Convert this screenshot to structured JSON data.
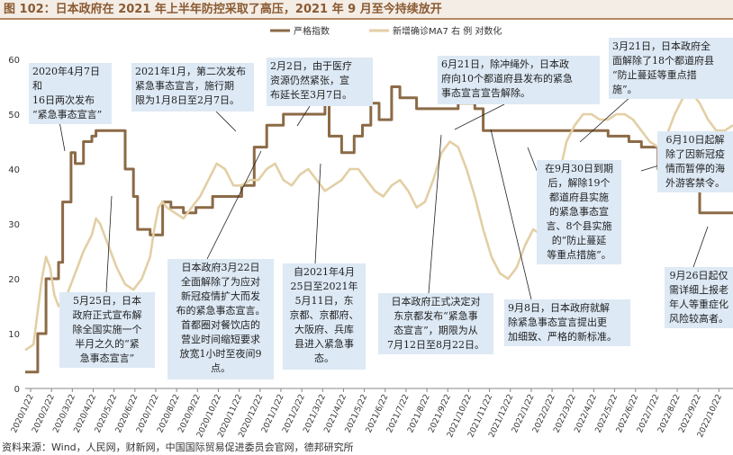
{
  "title": "图 102：日本政府在 2021 年上半年防控采取了高压，2021 年 9 月至今持续放开",
  "source": "资料来源：Wind，人民网，财新网，中国国际贸易促进委员会官网，德邦研究所",
  "colors": {
    "stringency": "#8b6a46",
    "ma7": "#e3cfa5",
    "annotation_bg": "#dde9f5",
    "title_text": "#8a5a32",
    "grid": "#cccccc"
  },
  "chart_data": {
    "type": "line",
    "legend_position": "top-right",
    "grid": false,
    "y_left_ticks": [
      "0",
      "10",
      "20",
      "30",
      "40",
      "50",
      "60"
    ],
    "ylim_left": [
      0,
      60
    ],
    "x_tick_labels": [
      "2020/1/22",
      "2020/2/22",
      "2020/3/22",
      "2020/4/22",
      "2020/5/22",
      "2020/6/22",
      "2020/7/22",
      "2020/8/22",
      "2020/9/22",
      "2020/10/22",
      "2020/11/22",
      "2020/12/22",
      "2021/1/22",
      "2021/2/22",
      "2021/3/22",
      "2021/4/22",
      "2021/5/22",
      "2021/6/22",
      "2021/7/22",
      "2021/8/22",
      "2021/9/22",
      "2021/10/22",
      "2021/11/22",
      "2021/12/22",
      "2022/1/22",
      "2022/2/22",
      "2022/3/22",
      "2022/4/22",
      "2022/5/22",
      "2022/6/22",
      "2022/7/22",
      "2022/8/22",
      "2022/9/22",
      "2022/10/22"
    ],
    "series": [
      {
        "name": "严格指数",
        "axis": "left",
        "values": [
          [
            0,
            3
          ],
          [
            3,
            3
          ],
          [
            3,
            10
          ],
          [
            5,
            10
          ],
          [
            5,
            20
          ],
          [
            8,
            20
          ],
          [
            8,
            23
          ],
          [
            9,
            23
          ],
          [
            9,
            34
          ],
          [
            11,
            34
          ],
          [
            11,
            43
          ],
          [
            12,
            43
          ],
          [
            12,
            41
          ],
          [
            14,
            41
          ],
          [
            14,
            45
          ],
          [
            16,
            45
          ],
          [
            16,
            46
          ],
          [
            17,
            46
          ],
          [
            17,
            47
          ],
          [
            24,
            47
          ],
          [
            24,
            40
          ],
          [
            26,
            40
          ],
          [
            26,
            35
          ],
          [
            27,
            35
          ],
          [
            27,
            29
          ],
          [
            30,
            29
          ],
          [
            30,
            28
          ],
          [
            33,
            28
          ],
          [
            33,
            34
          ],
          [
            35,
            34
          ],
          [
            35,
            33
          ],
          [
            38,
            33
          ],
          [
            38,
            32
          ],
          [
            41,
            32
          ],
          [
            41,
            33
          ],
          [
            45,
            33
          ],
          [
            45,
            35
          ],
          [
            52,
            35
          ],
          [
            52,
            37
          ],
          [
            55,
            37
          ],
          [
            55,
            44
          ],
          [
            58,
            44
          ],
          [
            58,
            48
          ],
          [
            62,
            48
          ],
          [
            62,
            50
          ],
          [
            72,
            50
          ],
          [
            72,
            52
          ],
          [
            73,
            52
          ],
          [
            73,
            46
          ],
          [
            76,
            46
          ],
          [
            76,
            43
          ],
          [
            79,
            43
          ],
          [
            79,
            46
          ],
          [
            81,
            46
          ],
          [
            81,
            48
          ],
          [
            83,
            48
          ],
          [
            83,
            52
          ],
          [
            85,
            52
          ],
          [
            85,
            49
          ],
          [
            88,
            49
          ],
          [
            88,
            55
          ],
          [
            90,
            55
          ],
          [
            90,
            53
          ],
          [
            94,
            53
          ],
          [
            94,
            51
          ],
          [
            104,
            51
          ],
          [
            104,
            52
          ],
          [
            108,
            52
          ],
          [
            108,
            51
          ],
          [
            110,
            51
          ],
          [
            110,
            47
          ],
          [
            140,
            47
          ],
          [
            140,
            46
          ],
          [
            145,
            46
          ],
          [
            145,
            45
          ],
          [
            148,
            45
          ],
          [
            148,
            44
          ],
          [
            152,
            44
          ],
          [
            152,
            40
          ],
          [
            155,
            40
          ],
          [
            155,
            38
          ],
          [
            158,
            38
          ],
          [
            158,
            37
          ],
          [
            162,
            37
          ],
          [
            162,
            32
          ],
          [
            170,
            32
          ]
        ]
      },
      {
        "name": "新增确诊MA7 右 例 对数化",
        "axis": "right",
        "values": [
          [
            0,
            7
          ],
          [
            2,
            8
          ],
          [
            4,
            20
          ],
          [
            5,
            24
          ],
          [
            6,
            22
          ],
          [
            7,
            17
          ],
          [
            8,
            15
          ],
          [
            10,
            17
          ],
          [
            12,
            21
          ],
          [
            14,
            25
          ],
          [
            16,
            28
          ],
          [
            17,
            31
          ],
          [
            18,
            30
          ],
          [
            20,
            26
          ],
          [
            22,
            22
          ],
          [
            24,
            19
          ],
          [
            26,
            18
          ],
          [
            28,
            20
          ],
          [
            30,
            24
          ],
          [
            31,
            29
          ],
          [
            32,
            33
          ],
          [
            33,
            34
          ],
          [
            34,
            33
          ],
          [
            36,
            32
          ],
          [
            38,
            31
          ],
          [
            40,
            33
          ],
          [
            42,
            35
          ],
          [
            44,
            38
          ],
          [
            46,
            41
          ],
          [
            48,
            40
          ],
          [
            50,
            37
          ],
          [
            52,
            37
          ],
          [
            54,
            38
          ],
          [
            56,
            38
          ],
          [
            58,
            40
          ],
          [
            60,
            41
          ],
          [
            62,
            38
          ],
          [
            64,
            37
          ],
          [
            66,
            39
          ],
          [
            68,
            40
          ],
          [
            70,
            38
          ],
          [
            72,
            36
          ],
          [
            74,
            37
          ],
          [
            76,
            38
          ],
          [
            78,
            40
          ],
          [
            80,
            40
          ],
          [
            82,
            38
          ],
          [
            84,
            36
          ],
          [
            86,
            35
          ],
          [
            88,
            37
          ],
          [
            90,
            38
          ],
          [
            92,
            36
          ],
          [
            94,
            33
          ],
          [
            96,
            34
          ],
          [
            98,
            38
          ],
          [
            100,
            43
          ],
          [
            102,
            45
          ],
          [
            104,
            44
          ],
          [
            106,
            40
          ],
          [
            108,
            35
          ],
          [
            110,
            29
          ],
          [
            112,
            24
          ],
          [
            114,
            21
          ],
          [
            116,
            20
          ],
          [
            118,
            22
          ],
          [
            120,
            26
          ],
          [
            122,
            29
          ],
          [
            124,
            28
          ],
          [
            126,
            30
          ],
          [
            128,
            38
          ],
          [
            130,
            45
          ],
          [
            132,
            48
          ],
          [
            134,
            50
          ],
          [
            136,
            50
          ],
          [
            138,
            49
          ],
          [
            140,
            49
          ],
          [
            142,
            50
          ],
          [
            144,
            50
          ],
          [
            146,
            49
          ],
          [
            148,
            47
          ],
          [
            150,
            45
          ],
          [
            152,
            44
          ],
          [
            154,
            46
          ],
          [
            156,
            50
          ],
          [
            158,
            53
          ],
          [
            160,
            54
          ],
          [
            162,
            52
          ],
          [
            164,
            49
          ],
          [
            166,
            47
          ],
          [
            168,
            47
          ],
          [
            170,
            48
          ]
        ]
      }
    ],
    "annotations": [
      {
        "text": "2020年4月7日和\n16日两次发布\n“紧急事态宣言”"
      },
      {
        "text": "5月25日，日本\n政府正式宣布解\n除全国实施一个\n半月之久的“紧\n急事态宣言”"
      },
      {
        "text": "2021年1月，第二次发布\n紧急事态宣言，施行期\n限为1月8日至2月7日。"
      },
      {
        "text": "2月2日，由于医疗\n资源仍然紧张，宣\n布延长至3月7日。"
      },
      {
        "text": "日本政府3月22日\n全面解除了为应对\n新冠疫情扩大而发\n布的紧急事态宣言。\n首都圈对餐饮店的\n营业时间缩短要求\n放宽1小时至夜间9\n点。"
      },
      {
        "text": "自2021年4月\n25日至2021年\n5月11日，东\n京都、京都府、\n大阪府、兵库\n县进入紧急事\n态。"
      },
      {
        "text": "6月21日，除冲绳外，日本政\n府向10个都道府县发布的紧急\n事态宣言宣告解除。"
      },
      {
        "text": "日本政府正式决定对\n东京都发布“紧急事\n态宣言”，期限为从\n7月12日至8月22日。"
      },
      {
        "text": "9月8日，日本政府就解\n除紧急事态宣言提出更\n加细致、严格的新标准。"
      },
      {
        "text": "在9月30日到期\n后，解除19个\n都道府县实施\n的紧急事态宣\n言、8个县实施\n的“防止蔓延\n等重点措施”。"
      },
      {
        "text": "3月21日，日本政府全\n面解除了18个都道府县\n“防止蔓延等重点措\n施”。"
      },
      {
        "text": "6月10日起解\n除了因新冠疫\n情而暂停的海\n外游客禁令。"
      },
      {
        "text": "9月26日起仅\n需详细上报老\n年人等重症化\n风险较高者。"
      }
    ]
  }
}
